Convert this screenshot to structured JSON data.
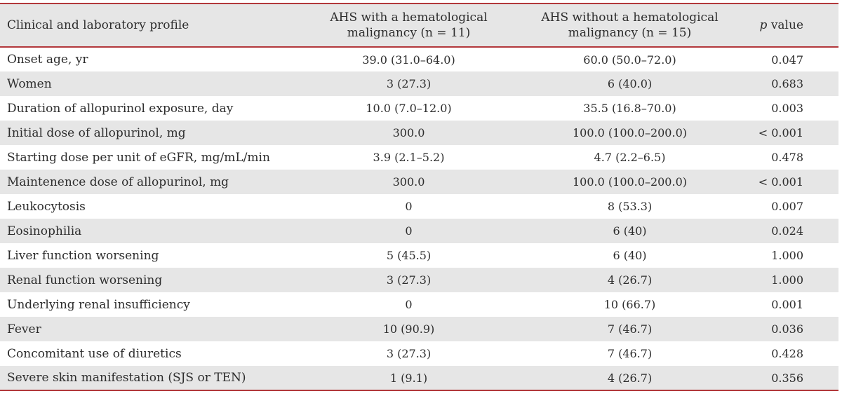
{
  "colors": {
    "accent_red": "#b2383b",
    "stripe_gray": "#e6e6e6",
    "text": "#2d2d2d"
  },
  "table": {
    "header": {
      "profile": "Clinical and laboratory profile",
      "with_malignancy_line1": "AHS with a hematological",
      "with_malignancy_line2": "malignancy (n = 11)",
      "without_malignancy_line1": "AHS without a hematological",
      "without_malignancy_line2": "malignancy (n = 15)",
      "p_italic": "p",
      "p_rest": "value"
    },
    "rows": [
      {
        "label": "Onset age, yr",
        "with_malignancy": "39.0 (31.0–64.0)",
        "without_malignancy": "60.0 (50.0–72.0)",
        "p_value": "0.047"
      },
      {
        "label": "Women",
        "with_malignancy": "3 (27.3)",
        "without_malignancy": "6 (40.0)",
        "p_value": "0.683"
      },
      {
        "label": "Duration of allopurinol exposure, day",
        "with_malignancy": "10.0 (7.0–12.0)",
        "without_malignancy": "35.5 (16.8–70.0)",
        "p_value": "0.003"
      },
      {
        "label": "Initial dose of allopurinol, mg",
        "with_malignancy": "300.0",
        "without_malignancy": "100.0 (100.0–200.0)",
        "p_value": "< 0.001"
      },
      {
        "label": "Starting dose per unit of eGFR, mg/mL/min",
        "with_malignancy": "3.9 (2.1–5.2)",
        "without_malignancy": "4.7 (2.2–6.5)",
        "p_value": "0.478"
      },
      {
        "label": "Maintenence dose of allopurinol, mg",
        "with_malignancy": "300.0",
        "without_malignancy": "100.0 (100.0–200.0)",
        "p_value": "< 0.001"
      },
      {
        "label": "Leukocytosis",
        "with_malignancy": "0",
        "without_malignancy": "8 (53.3)",
        "p_value": "0.007"
      },
      {
        "label": "Eosinophilia",
        "with_malignancy": "0",
        "without_malignancy": "6 (40)",
        "p_value": "0.024"
      },
      {
        "label": "Liver function worsening",
        "with_malignancy": "5 (45.5)",
        "without_malignancy": "6 (40)",
        "p_value": "1.000"
      },
      {
        "label": "Renal function worsening",
        "with_malignancy": "3 (27.3)",
        "without_malignancy": "4 (26.7)",
        "p_value": "1.000"
      },
      {
        "label": "Underlying renal insufficiency",
        "with_malignancy": "0",
        "without_malignancy": "10 (66.7)",
        "p_value": "0.001"
      },
      {
        "label": "Fever",
        "with_malignancy": "10 (90.9)",
        "without_malignancy": "7 (46.7)",
        "p_value": "0.036"
      },
      {
        "label": "Concomitant use of diuretics",
        "with_malignancy": "3 (27.3)",
        "without_malignancy": "7 (46.7)",
        "p_value": "0.428"
      },
      {
        "label": "Severe skin manifestation (SJS or TEN)",
        "with_malignancy": "1 (9.1)",
        "without_malignancy": "4 (26.7)",
        "p_value": "0.356"
      }
    ]
  }
}
